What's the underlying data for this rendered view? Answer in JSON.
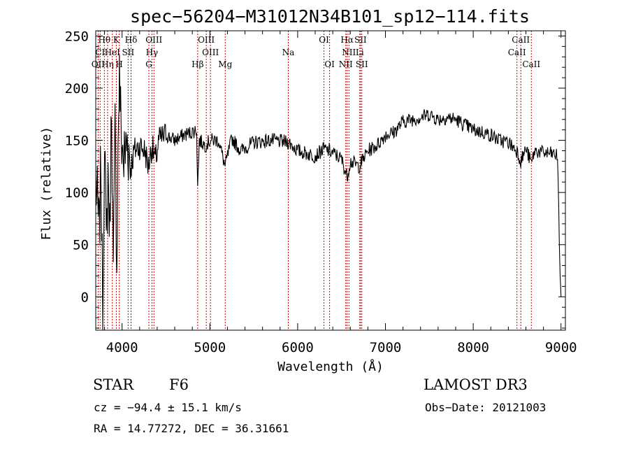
{
  "chart_data": {
    "type": "line",
    "title": "spec−56204−M31012N34B101_sp12−114.fits",
    "xlabel": "Wavelength (Å)",
    "ylabel": "Flux (relative)",
    "xlim": [
      3700,
      9050
    ],
    "ylim": [
      -32,
      255
    ],
    "xticks": [
      4000,
      5000,
      6000,
      7000,
      8000,
      9000
    ],
    "yticks": [
      0,
      50,
      100,
      150,
      200,
      250
    ],
    "grid": false,
    "series": [
      {
        "name": "spectrum",
        "x": [
          3700,
          3740,
          3760,
          3780,
          3800,
          3820,
          3840,
          3860,
          3880,
          3900,
          3920,
          3940,
          3960,
          3970,
          3990,
          4020,
          4060,
          4100,
          4140,
          4200,
          4260,
          4300,
          4340,
          4380,
          4420,
          4500,
          4600,
          4700,
          4800,
          4850,
          4861,
          4880,
          4950,
          5000,
          5100,
          5173,
          5250,
          5350,
          5500,
          5700,
          5900,
          6000,
          6200,
          6300,
          6400,
          6500,
          6563,
          6600,
          6700,
          6800,
          6900,
          7000,
          7100,
          7200,
          7300,
          7400,
          7500,
          7600,
          7700,
          7800,
          7900,
          8000,
          8100,
          8200,
          8300,
          8400,
          8500,
          8542,
          8600,
          8662,
          8700,
          8800,
          8900,
          8960,
          8980,
          8990,
          9000
        ],
        "y": [
          110,
          60,
          130,
          -30,
          170,
          40,
          120,
          60,
          195,
          15,
          160,
          35,
          180,
          210,
          155,
          130,
          150,
          125,
          140,
          145,
          140,
          125,
          145,
          130,
          150,
          155,
          150,
          155,
          158,
          160,
          105,
          150,
          145,
          150,
          150,
          125,
          152,
          140,
          148,
          150,
          148,
          140,
          135,
          142,
          138,
          132,
          115,
          130,
          125,
          140,
          145,
          155,
          158,
          168,
          170,
          172,
          175,
          170,
          172,
          170,
          165,
          160,
          158,
          155,
          150,
          148,
          140,
          130,
          142,
          128,
          140,
          138,
          137,
          135,
          60,
          20,
          0
        ]
      }
    ],
    "emission_lines": [
      {
        "name": "Hθ",
        "x": 3798,
        "row": 1
      },
      {
        "name": "K",
        "x": 3934,
        "row": 1
      },
      {
        "name": "Hδ",
        "x": 4102,
        "row": 1
      },
      {
        "name": "OIII",
        "x": 4363,
        "row": 1
      },
      {
        "name": "OIII",
        "x": 4959,
        "row": 1
      },
      {
        "name": "OI",
        "x": 6300,
        "row": 1
      },
      {
        "name": "Hα",
        "x": 6563,
        "row": 1
      },
      {
        "name": "SII",
        "x": 6716,
        "row": 1
      },
      {
        "name": "CaII",
        "x": 8542,
        "row": 1
      },
      {
        "name": "CI",
        "x": 3750,
        "row": 2
      },
      {
        "name": "HeI",
        "x": 3889,
        "row": 2
      },
      {
        "name": "SII",
        "x": 4069,
        "row": 2
      },
      {
        "name": "Hγ",
        "x": 4340,
        "row": 2
      },
      {
        "name": "OIII",
        "x": 5007,
        "row": 2
      },
      {
        "name": "Na",
        "x": 5893,
        "row": 2
      },
      {
        "name": "NII",
        "x": 6584,
        "row": 2
      },
      {
        "name": "Li",
        "x": 6708,
        "row": 2
      },
      {
        "name": "CaII",
        "x": 8498,
        "row": 2
      },
      {
        "name": "OII",
        "x": 3727,
        "row": 3
      },
      {
        "name": "Hη",
        "x": 3835,
        "row": 3
      },
      {
        "name": "H",
        "x": 3968,
        "row": 3
      },
      {
        "name": "G",
        "x": 4305,
        "row": 3
      },
      {
        "name": "Hβ",
        "x": 4861,
        "row": 3
      },
      {
        "name": "Mg",
        "x": 5175,
        "row": 3
      },
      {
        "name": "OI",
        "x": 6364,
        "row": 3
      },
      {
        "name": "NII",
        "x": 6548,
        "row": 3
      },
      {
        "name": "SII",
        "x": 6731,
        "row": 3
      },
      {
        "name": "CaII",
        "x": 8662,
        "row": 3
      }
    ]
  },
  "info": {
    "object_class": "STAR",
    "subclass": "F6",
    "survey": "LAMOST DR3",
    "cz": "cz = −94.4 ± 15.1 km/s",
    "obs_date": "Obs−Date: 20121003",
    "coords": "RA =  14.77272, DEC =  36.31661"
  },
  "colors": {
    "spectrum": "#000000",
    "line_markers": "#cc0000",
    "axes": "#000000"
  }
}
